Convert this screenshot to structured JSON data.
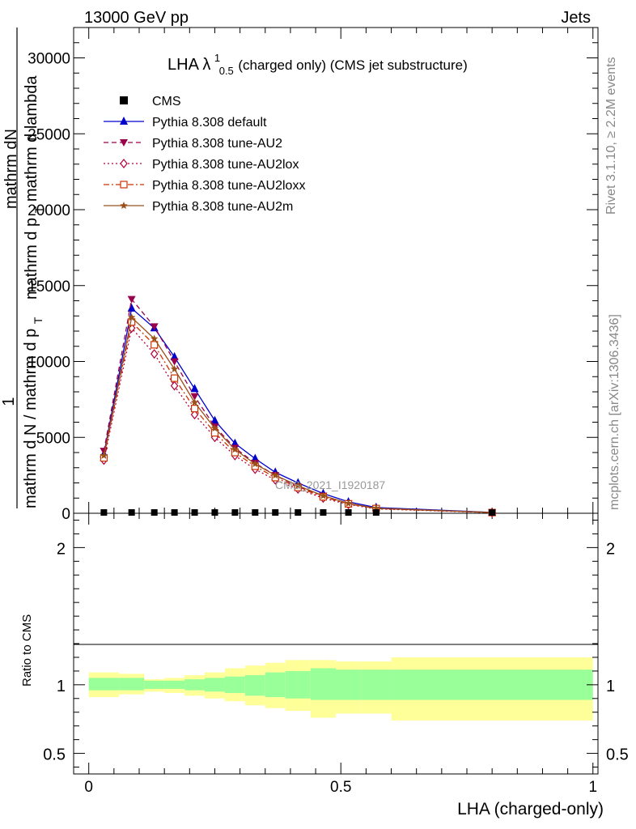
{
  "header": {
    "left": "13000 GeV pp",
    "right": "Jets"
  },
  "side": {
    "rivet": "Rivet 3.1.10, ≥ 2.2M events",
    "mcplots": "mcplots.cern.ch [arXiv:1306.3436]"
  },
  "plot_title": {
    "main": "LHA λ",
    "sup": "1",
    "sub": "0.5",
    "rest": " (charged only) (CMS jet substructure)"
  },
  "watermark": "CMS_2021_I1920187",
  "ylabel_main": {
    "one": "1",
    "top": "mathrm dN",
    "top2": "mathrm d p",
    "top2_sub": "T",
    "top3": " mathrm d lambda",
    "bottom": "mathrm d N / mathrm d p",
    "bottom_sub": "T"
  },
  "ylabel_ratio": "Ratio to CMS",
  "xlabel": "LHA (charged-only)",
  "colors": {
    "cms": "#000000",
    "default": "#0000cc",
    "au2": "#99004c",
    "au2lox": "#b3003c",
    "au2loxx": "#cc3300",
    "au2m": "#99501a",
    "band_inner": "#99ff99",
    "band_outer": "#ffff99"
  },
  "chart_data": [
    {
      "type": "line",
      "panel": "main",
      "xlim": [
        -0.03,
        1.01
      ],
      "ylim": [
        0,
        32000
      ],
      "x_ticks": [
        "0",
        "0.5",
        "1"
      ],
      "y_ticks": [
        "0",
        "5000",
        "10000",
        "15000",
        "20000",
        "25000",
        "30000"
      ],
      "bin_edges": [
        0.0,
        0.06,
        0.11,
        0.15,
        0.19,
        0.23,
        0.27,
        0.31,
        0.35,
        0.39,
        0.44,
        0.49,
        0.54,
        0.6,
        1.0
      ],
      "x": [
        0.03,
        0.085,
        0.13,
        0.17,
        0.21,
        0.25,
        0.29,
        0.33,
        0.37,
        0.415,
        0.465,
        0.515,
        0.57,
        0.8
      ],
      "series": [
        {
          "name": "CMS",
          "marker": "square",
          "style": "none",
          "values": [
            25,
            25,
            25,
            25,
            25,
            25,
            25,
            25,
            25,
            25,
            25,
            25,
            25,
            25
          ]
        },
        {
          "name": "Pythia 8.308 default",
          "marker": "triangle-up",
          "style": "solid",
          "values": [
            3900,
            13500,
            12200,
            10300,
            8200,
            6100,
            4600,
            3600,
            2700,
            2000,
            1300,
            750,
            380,
            60
          ]
        },
        {
          "name": "Pythia 8.308 tune-AU2",
          "marker": "triangle-down",
          "style": "dashed",
          "values": [
            4100,
            14100,
            12300,
            10000,
            7700,
            5700,
            4300,
            3300,
            2500,
            1750,
            1150,
            650,
            320,
            50
          ]
        },
        {
          "name": "Pythia 8.308 tune-AU2lox",
          "marker": "diamond-open",
          "style": "dotted",
          "values": [
            3500,
            12200,
            10500,
            8400,
            6500,
            5000,
            3800,
            2900,
            2200,
            1600,
            1000,
            580,
            290,
            45
          ]
        },
        {
          "name": "Pythia 8.308 tune-AU2loxx",
          "marker": "square-open",
          "style": "dashdot",
          "values": [
            3650,
            12600,
            11100,
            8900,
            6900,
            5300,
            4000,
            3100,
            2350,
            1700,
            1080,
            620,
            310,
            48
          ]
        },
        {
          "name": "Pythia 8.308 tune-AU2m",
          "marker": "star",
          "style": "solid",
          "values": [
            3800,
            12900,
            11500,
            9500,
            7300,
            5600,
            4200,
            3250,
            2500,
            1820,
            1150,
            650,
            330,
            52
          ]
        }
      ]
    },
    {
      "type": "area",
      "panel": "ratio",
      "ylabel": "Ratio to CMS",
      "xlabel": "LHA (charged-only)",
      "ylim": [
        0.35,
        2.25
      ],
      "y_ticks": [
        "0.5",
        "1",
        "2"
      ],
      "x_ticks": [
        "0",
        "0.5",
        "1"
      ],
      "bin_edges": [
        0.0,
        0.06,
        0.11,
        0.15,
        0.19,
        0.23,
        0.27,
        0.31,
        0.35,
        0.39,
        0.44,
        0.49,
        0.54,
        0.6,
        1.0
      ],
      "band_inner": {
        "low": [
          0.96,
          0.96,
          0.97,
          0.97,
          0.96,
          0.95,
          0.94,
          0.92,
          0.91,
          0.9,
          0.89,
          0.89,
          0.89,
          0.89
        ],
        "high": [
          1.05,
          1.05,
          1.03,
          1.03,
          1.04,
          1.05,
          1.06,
          1.07,
          1.09,
          1.1,
          1.12,
          1.11,
          1.11,
          1.11
        ]
      },
      "band_outer": {
        "low": [
          0.91,
          0.93,
          0.95,
          0.94,
          0.92,
          0.9,
          0.88,
          0.85,
          0.83,
          0.81,
          0.76,
          0.79,
          0.79,
          0.74
        ],
        "high": [
          1.09,
          1.08,
          1.04,
          1.05,
          1.07,
          1.09,
          1.12,
          1.14,
          1.16,
          1.18,
          1.18,
          1.17,
          1.17,
          1.2
        ]
      },
      "reference": 1
    }
  ]
}
